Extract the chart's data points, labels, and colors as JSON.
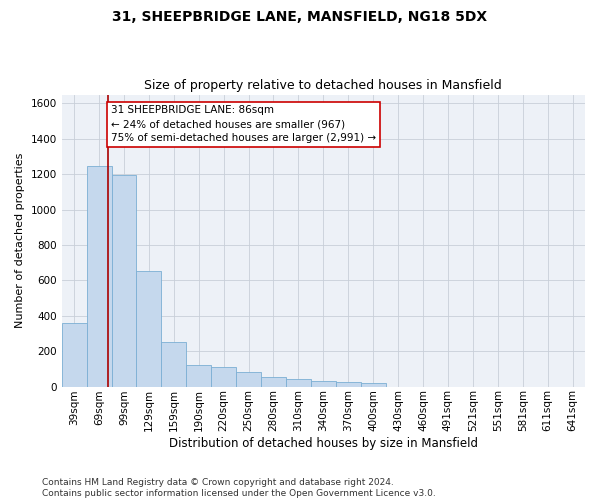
{
  "title1": "31, SHEEPBRIDGE LANE, MANSFIELD, NG18 5DX",
  "title2": "Size of property relative to detached houses in Mansfield",
  "xlabel": "Distribution of detached houses by size in Mansfield",
  "ylabel": "Number of detached properties",
  "categories": [
    "39sqm",
    "69sqm",
    "99sqm",
    "129sqm",
    "159sqm",
    "190sqm",
    "220sqm",
    "250sqm",
    "280sqm",
    "310sqm",
    "340sqm",
    "370sqm",
    "400sqm",
    "430sqm",
    "460sqm",
    "491sqm",
    "521sqm",
    "551sqm",
    "581sqm",
    "611sqm",
    "641sqm"
  ],
  "values": [
    360,
    1245,
    1195,
    655,
    250,
    120,
    110,
    80,
    55,
    40,
    30,
    25,
    18,
    0,
    0,
    0,
    0,
    0,
    0,
    0,
    0
  ],
  "bar_color": "#c5d8ed",
  "bar_edgecolor": "#7bafd4",
  "vline_x": 1.35,
  "vline_color": "#aa0000",
  "annotation_text": "31 SHEEPBRIDGE LANE: 86sqm\n← 24% of detached houses are smaller (967)\n75% of semi-detached houses are larger (2,991) →",
  "annotation_box_color": "#ffffff",
  "annotation_box_edgecolor": "#cc0000",
  "ylim": [
    0,
    1650
  ],
  "yticks": [
    0,
    200,
    400,
    600,
    800,
    1000,
    1200,
    1400,
    1600
  ],
  "grid_color": "#c8cfd8",
  "bg_color": "#edf1f7",
  "footer": "Contains HM Land Registry data © Crown copyright and database right 2024.\nContains public sector information licensed under the Open Government Licence v3.0.",
  "title1_fontsize": 10,
  "title2_fontsize": 9,
  "xlabel_fontsize": 8.5,
  "ylabel_fontsize": 8,
  "tick_fontsize": 7.5,
  "annotation_fontsize": 7.5,
  "footer_fontsize": 6.5
}
